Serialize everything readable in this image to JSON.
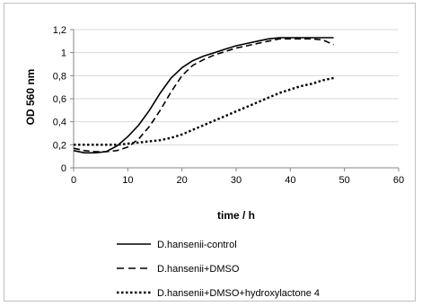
{
  "chart_data": {
    "type": "line",
    "title": "",
    "xlabel": "time / h",
    "ylabel": "OD 560 nm",
    "xlim": [
      0,
      60
    ],
    "ylim": [
      0,
      1.2
    ],
    "x_ticks": [
      "0",
      "10",
      "20",
      "30",
      "40",
      "50",
      "60"
    ],
    "y_ticks": [
      "0",
      "0,2",
      "0,4",
      "0,6",
      "0,8",
      "1",
      "1,2"
    ],
    "grid": "horizontal",
    "legend_position": "bottom",
    "series": [
      {
        "name": "D.hansenii-control",
        "style": "solid",
        "x": [
          0,
          2,
          4,
          6,
          8,
          10,
          12,
          14,
          16,
          18,
          20,
          22,
          24,
          26,
          28,
          30,
          32,
          34,
          36,
          38,
          40,
          42,
          44,
          46,
          48
        ],
        "y": [
          0.15,
          0.13,
          0.13,
          0.14,
          0.19,
          0.27,
          0.37,
          0.5,
          0.65,
          0.78,
          0.87,
          0.93,
          0.97,
          1.0,
          1.03,
          1.06,
          1.08,
          1.1,
          1.12,
          1.13,
          1.13,
          1.13,
          1.13,
          1.13,
          1.13
        ]
      },
      {
        "name": "D.hansenii+DMSO",
        "style": "dashed",
        "x": [
          0,
          2,
          4,
          6,
          8,
          10,
          12,
          14,
          16,
          18,
          20,
          22,
          24,
          26,
          28,
          30,
          32,
          34,
          36,
          38,
          40,
          42,
          44,
          46,
          48
        ],
        "y": [
          0.17,
          0.15,
          0.14,
          0.14,
          0.15,
          0.18,
          0.25,
          0.36,
          0.5,
          0.66,
          0.8,
          0.89,
          0.94,
          0.98,
          1.01,
          1.04,
          1.06,
          1.08,
          1.1,
          1.12,
          1.12,
          1.12,
          1.12,
          1.11,
          1.07
        ]
      },
      {
        "name": "D.hansenii+DMSO+hydroxylactone 4",
        "style": "dotted",
        "x": [
          0,
          2,
          4,
          6,
          8,
          10,
          12,
          14,
          16,
          18,
          20,
          22,
          24,
          26,
          28,
          30,
          32,
          34,
          36,
          38,
          40,
          42,
          44,
          46,
          48
        ],
        "y": [
          0.2,
          0.2,
          0.2,
          0.2,
          0.2,
          0.21,
          0.22,
          0.23,
          0.24,
          0.26,
          0.29,
          0.33,
          0.37,
          0.41,
          0.45,
          0.49,
          0.53,
          0.57,
          0.61,
          0.65,
          0.68,
          0.71,
          0.73,
          0.76,
          0.78
        ]
      }
    ]
  }
}
